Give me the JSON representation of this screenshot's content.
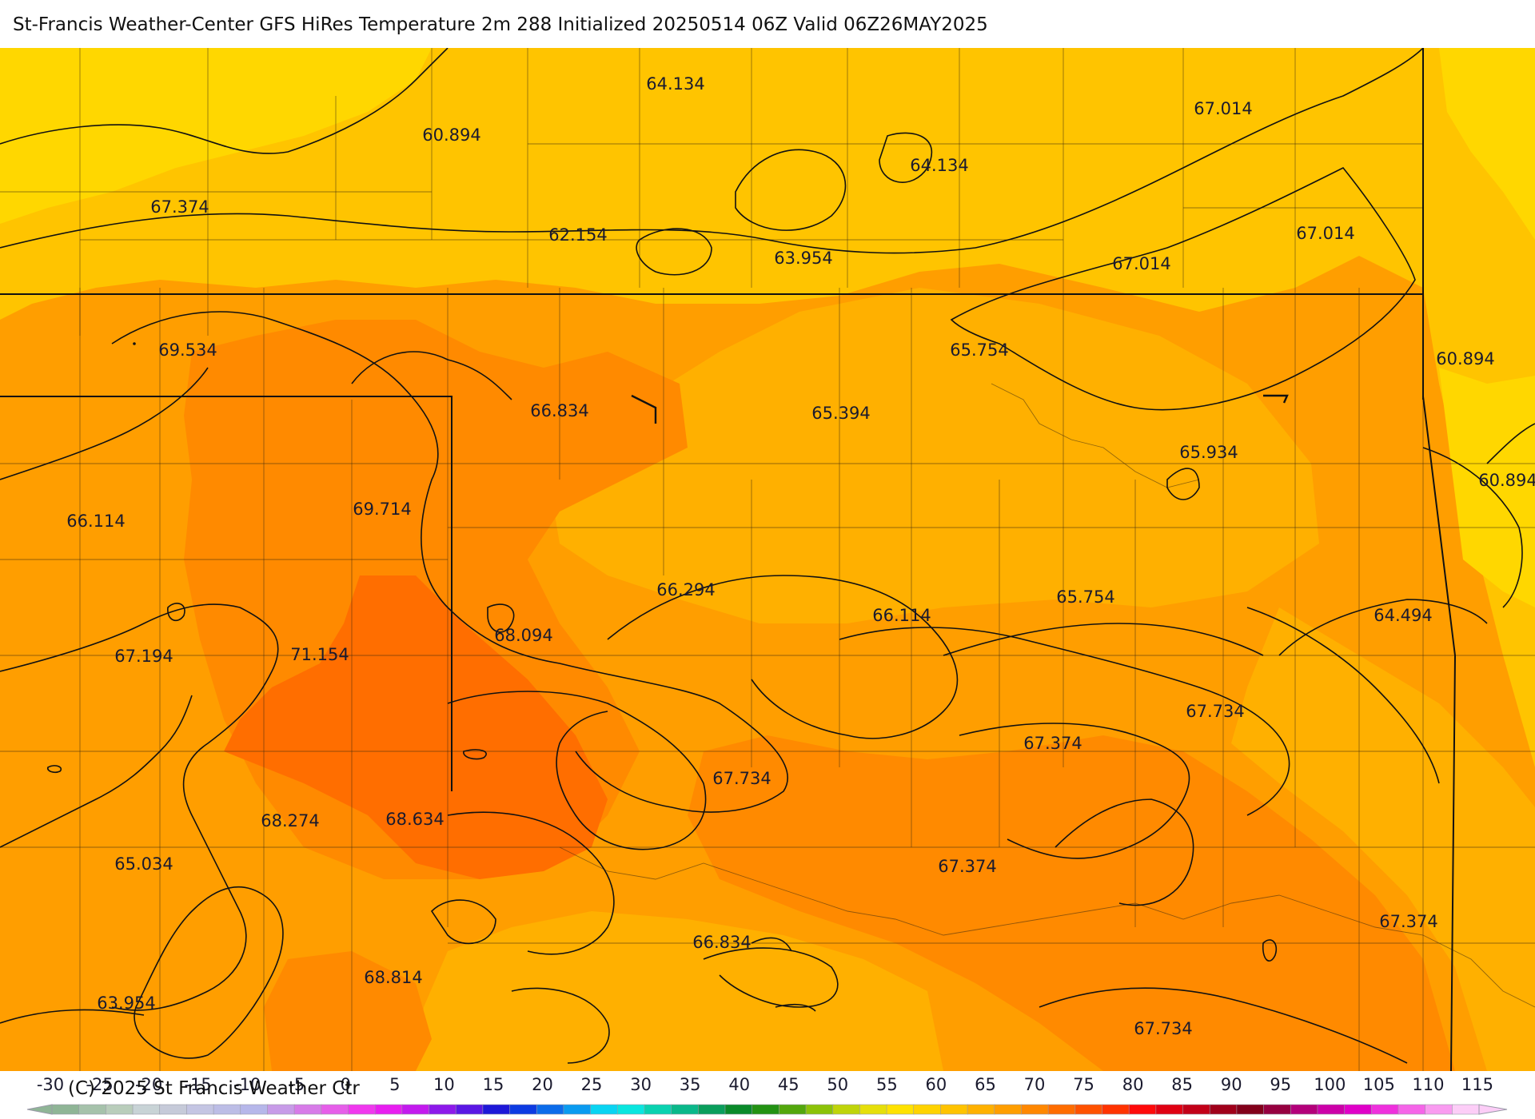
{
  "header": {
    "title": "St-Francis Weather-Center GFS HiRes Temperature 2m  288 Initialized 20250514 06Z Valid 06Z26MAY2025"
  },
  "map": {
    "temperature_labels": [
      "64.134",
      "60.894",
      "67.014",
      "67.374",
      "62.154",
      "64.134",
      "63.954",
      "67.014",
      "67.014",
      "69.534",
      "65.754",
      "66.834",
      "65.394",
      "60.894",
      "65.934",
      "60.894",
      "66.114",
      "69.714",
      "66.294",
      "66.114",
      "65.754",
      "64.494",
      "67.194",
      "71.154",
      "68.094",
      "67.734",
      "67.374",
      "67.734",
      "68.274",
      "68.634",
      "65.034",
      "67.374",
      "66.834",
      "67.374",
      "68.814",
      "63.954",
      "67.734"
    ],
    "fill_colors": {
      "yellow": "#ffd700",
      "gold": "#ffc400",
      "amber": "#ffb000",
      "orange_light": "#ff9e00",
      "orange": "#ff8a00",
      "orange_deep": "#ff6e00"
    }
  },
  "legend": {
    "ticks": [
      "-30",
      "-25",
      "-20",
      "-15",
      "-10",
      "-5",
      "0",
      "5",
      "10",
      "15",
      "20",
      "25",
      "30",
      "35",
      "40",
      "45",
      "50",
      "55",
      "60",
      "65",
      "70",
      "75",
      "80",
      "85",
      "90",
      "95",
      "100",
      "105",
      "110",
      "115"
    ],
    "colors": [
      "#8fb596",
      "#a6c2ab",
      "#b9cdbb",
      "#c8d3d6",
      "#c6cad9",
      "#c4c5e3",
      "#bcbde6",
      "#b6b7ea",
      "#c79be8",
      "#d77be8",
      "#e65ee9",
      "#f038ee",
      "#e81ef0",
      "#c31aee",
      "#8d19ea",
      "#5a17e4",
      "#1e18d8",
      "#0d3be2",
      "#0c6cea",
      "#0a9bf0",
      "#0ad4f2",
      "#0ae6df",
      "#0ad2b0",
      "#0ab88a",
      "#0a9e5c",
      "#0a8a2a",
      "#239213",
      "#53a70c",
      "#8cc208",
      "#bfd40a",
      "#e6df0a",
      "#ffe200",
      "#ffd300",
      "#ffc300",
      "#ffb100",
      "#ff9e00",
      "#ff8700",
      "#ff6d00",
      "#ff5200",
      "#ff3300",
      "#ff0a0a",
      "#e00012",
      "#c20018",
      "#a0001a",
      "#82001a",
      "#960040",
      "#b3007a",
      "#cc00a8",
      "#e000c8",
      "#ef30dd",
      "#f565e8",
      "#f99bf0",
      "#fccdf7"
    ],
    "copyright": "(C) 2025 St Francis Weather Ctr"
  }
}
